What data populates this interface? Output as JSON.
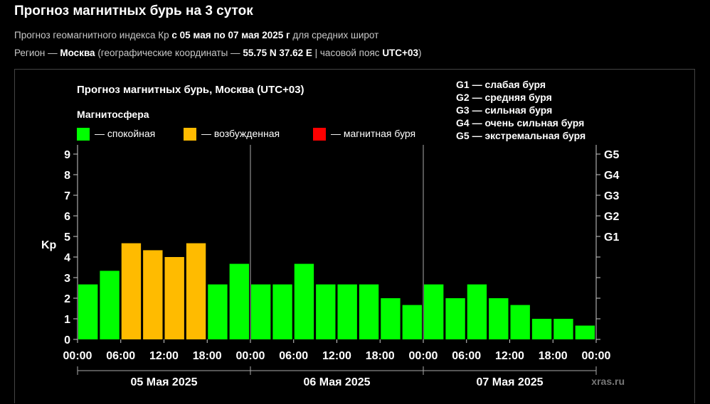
{
  "page": {
    "title": "Прогноз магнитных бурь на 3 суток",
    "info1": {
      "prefix": "Прогноз геомагнитного индекса Кр ",
      "range": "с 05 мая по 07 мая 2025 г",
      "suffix": " для средних широт"
    },
    "info2": {
      "prefix": "Регион — ",
      "city": "Москва",
      "mid": " (географические координаты — ",
      "coords": "55.75 N 37.62 E",
      "mid2": " | часовой пояс ",
      "tz": "UTC+03",
      "suffix": ")"
    }
  },
  "chart_data": {
    "type": "bar",
    "title": "Прогноз магнитных бурь, Москва (UTC+03)",
    "ylabel": "Kp",
    "ylim": [
      0,
      9
    ],
    "yticks": [
      "0",
      "1",
      "2",
      "3",
      "4",
      "5",
      "6",
      "7",
      "8",
      "9"
    ],
    "right_ticks": [
      {
        "value": 5,
        "label": "G1"
      },
      {
        "value": 6,
        "label": "G2"
      },
      {
        "value": 7,
        "label": "G3"
      },
      {
        "value": 8,
        "label": "G4"
      },
      {
        "value": 9,
        "label": "G5"
      }
    ],
    "legend_title": "Магнитосфера",
    "legend": [
      {
        "label": "— спокойная",
        "color": "#00ff00"
      },
      {
        "label": "— возбужденная",
        "color": "#ffbb00"
      },
      {
        "label": "— магнитная буря",
        "color": "#ff0000"
      }
    ],
    "g_scale": [
      "G1 — слабая буря",
      "G2 — средняя буря",
      "G3 — сильная буря",
      "G4 — очень сильная буря",
      "G5 — экстремальная буря"
    ],
    "x_tick_labels": [
      "00:00",
      "06:00",
      "12:00",
      "18:00",
      "00:00",
      "06:00",
      "12:00",
      "18:00",
      "00:00",
      "06:00",
      "12:00",
      "18:00",
      "00:00"
    ],
    "days": [
      "05 Мая 2025",
      "06 Мая 2025",
      "07 Мая 2025"
    ],
    "bars_per_day": 8,
    "values": [
      2.67,
      3.33,
      4.67,
      4.33,
      4.0,
      4.67,
      2.67,
      3.67,
      2.67,
      2.67,
      3.67,
      2.67,
      2.67,
      2.67,
      2.0,
      1.67,
      2.67,
      2.0,
      2.67,
      2.0,
      1.67,
      1.0,
      1.0,
      0.67
    ],
    "levels": [
      "quiet",
      "quiet",
      "active",
      "active",
      "active",
      "active",
      "quiet",
      "quiet",
      "quiet",
      "quiet",
      "quiet",
      "quiet",
      "quiet",
      "quiet",
      "quiet",
      "quiet",
      "quiet",
      "quiet",
      "quiet",
      "quiet",
      "quiet",
      "quiet",
      "quiet",
      "quiet"
    ],
    "level_colors": {
      "quiet": "#00ff00",
      "active": "#ffbb00",
      "storm": "#ff0000"
    },
    "watermark": "xras.ru"
  }
}
